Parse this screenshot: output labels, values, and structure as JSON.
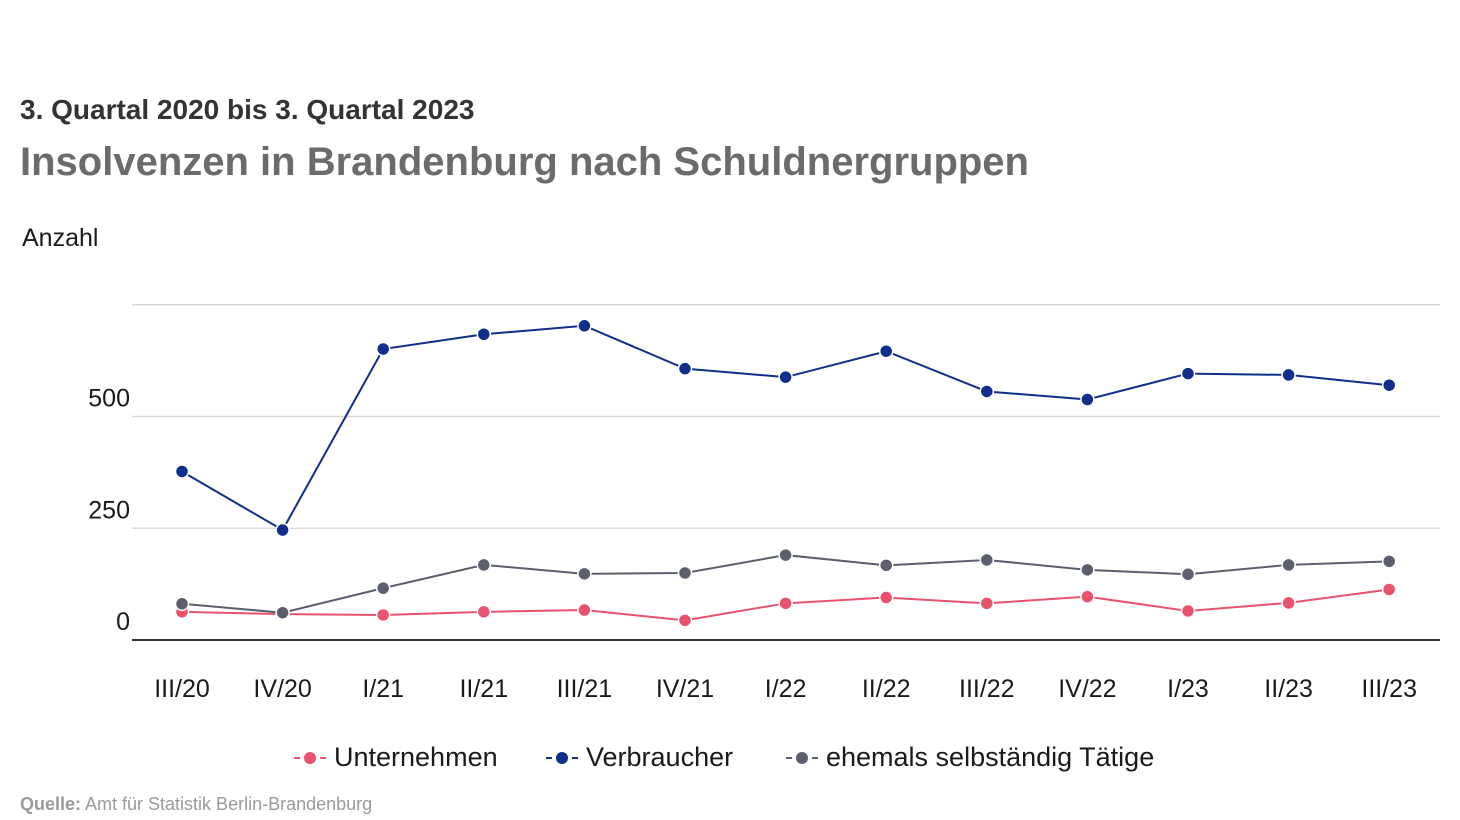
{
  "header": {
    "subtitle": "3. Quartal 2020 bis 3. Quartal 2023",
    "title": "Insolvenzen in Brandenburg nach Schuldnergruppen"
  },
  "source": {
    "label": "Quelle:",
    "text": "Amt für Statistik Berlin-Brandenburg"
  },
  "chart_data": {
    "type": "line",
    "title": "Insolvenzen in Brandenburg nach Schuldnergruppen",
    "subtitle": "3. Quartal 2020 bis 3. Quartal 2023",
    "ylabel": "Anzahl",
    "xlabel": "",
    "categories": [
      "III/20",
      "IV/20",
      "I/21",
      "II/21",
      "III/21",
      "IV/21",
      "I/22",
      "II/22",
      "III/22",
      "IV/22",
      "I/23",
      "II/23",
      "III/23"
    ],
    "yticks": [
      0,
      250,
      500
    ],
    "ylim": [
      0,
      750
    ],
    "grid": true,
    "legend_position": "bottom",
    "series": [
      {
        "name": "Unternehmen",
        "color": "#e8526d",
        "values": [
          63,
          58,
          56,
          63,
          67,
          44,
          82,
          95,
          82,
          97,
          65,
          83,
          113
        ]
      },
      {
        "name": "Verbraucher",
        "color": "#0f2f8a",
        "values": [
          377,
          246,
          651,
          684,
          703,
          607,
          588,
          646,
          556,
          538,
          596,
          593,
          570
        ]
      },
      {
        "name": "ehemals selbständig Tätige",
        "color": "#5b5f6e",
        "values": [
          81,
          61,
          116,
          168,
          148,
          150,
          190,
          167,
          179,
          157,
          147,
          168,
          176
        ]
      }
    ]
  }
}
